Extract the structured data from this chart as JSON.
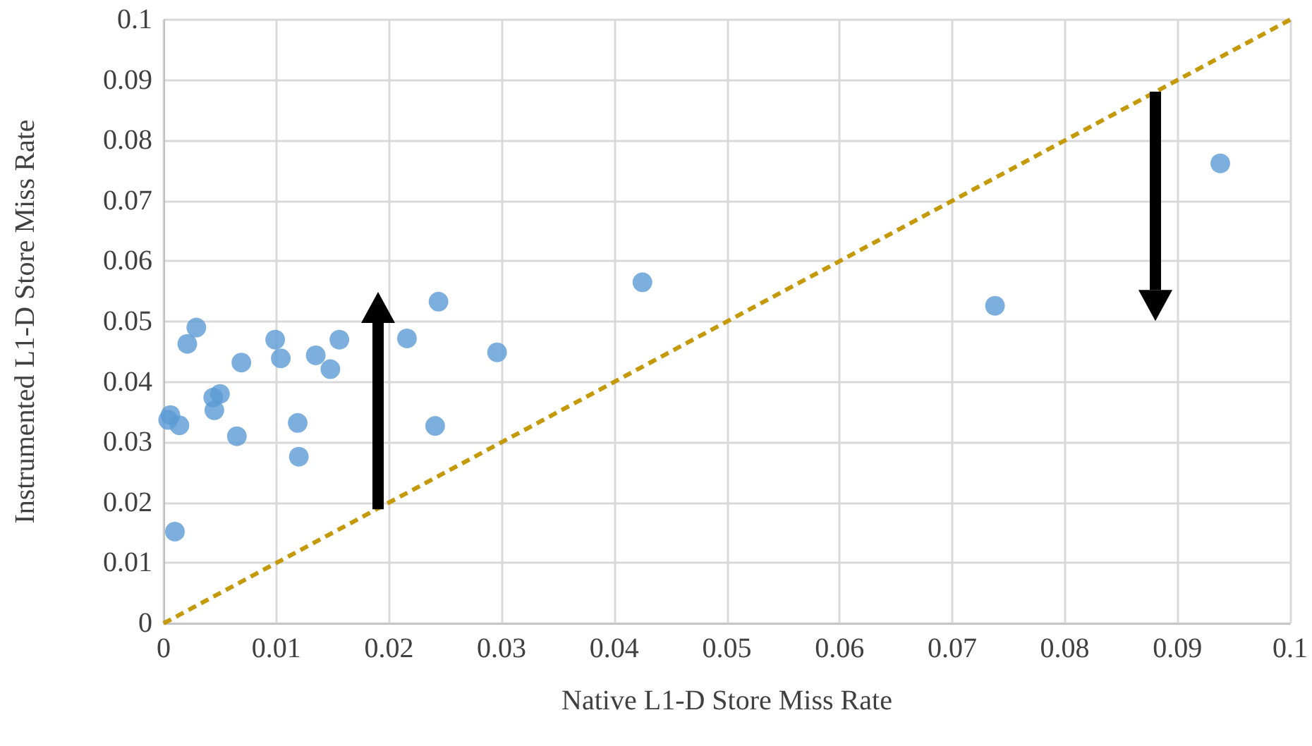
{
  "chart_data": {
    "type": "scatter",
    "xlabel": "Native L1-D Store Miss Rate",
    "ylabel": "Instrumented L1-D Store Miss Rate",
    "x": [
      0.0006,
      0.0004,
      0.0014,
      0.001,
      0.0021,
      0.0029,
      0.0044,
      0.005,
      0.0045,
      0.0065,
      0.0069,
      0.0099,
      0.0104,
      0.0119,
      0.012,
      0.0135,
      0.0148,
      0.0156,
      0.0216,
      0.0244,
      0.0241,
      0.0296,
      0.0425,
      0.0738,
      0.0938
    ],
    "series": [
      {
        "color": "#5b9bd5",
        "marker": "circle",
        "values": [
          0.0345,
          0.0337,
          0.0328,
          0.0152,
          0.0463,
          0.049,
          0.0374,
          0.038,
          0.0353,
          0.031,
          0.0432,
          0.047,
          0.0439,
          0.0332,
          0.0276,
          0.0444,
          0.0421,
          0.047,
          0.0472,
          0.0533,
          0.0327,
          0.0449,
          0.0565,
          0.0526,
          0.0762
        ]
      },
      {
        "type": "line",
        "color": "#c49a0a",
        "line_style": "dashed",
        "marker": "none",
        "x": [
          0,
          0.1
        ],
        "values": [
          0,
          0.1
        ]
      }
    ],
    "xlim": [
      0,
      0.1
    ],
    "ylim": [
      0,
      0.1
    ],
    "xticks": [
      0,
      0.01,
      0.02,
      0.03,
      0.04,
      0.05,
      0.06,
      0.07,
      0.08,
      0.09,
      0.1
    ],
    "yticks": [
      0,
      0.01,
      0.02,
      0.03,
      0.04,
      0.05,
      0.06,
      0.07,
      0.08,
      0.09,
      0.1
    ],
    "grid": true
  }
}
